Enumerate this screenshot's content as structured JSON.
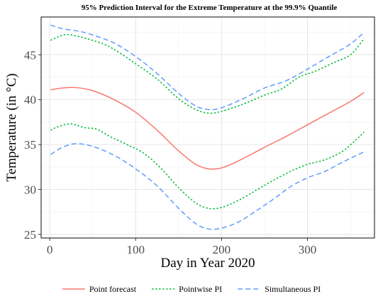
{
  "chart_data": {
    "type": "line",
    "title": "95% Prediction Interval for the Extreme Temperature at the 99.9% Quantile",
    "xlabel": "Day in Year 2020",
    "ylabel": "Temperature (in °C)",
    "xlim": [
      -10,
      378
    ],
    "ylim": [
      24.6,
      49.2
    ],
    "x_ticks": [
      0,
      100,
      200,
      300
    ],
    "y_ticks": [
      25,
      30,
      35,
      40,
      45
    ],
    "grid": true,
    "legend_position": "bottom",
    "series": [
      {
        "name": "Point forecast",
        "color": "#F8766D",
        "dash": "solid",
        "points": [
          [
            1,
            41.1
          ],
          [
            15,
            41.3
          ],
          [
            30,
            41.35
          ],
          [
            50,
            41.0
          ],
          [
            75,
            40.0
          ],
          [
            100,
            38.6
          ],
          [
            125,
            36.6
          ],
          [
            150,
            34.3
          ],
          [
            170,
            32.8
          ],
          [
            185,
            32.3
          ],
          [
            200,
            32.4
          ],
          [
            220,
            33.2
          ],
          [
            250,
            34.7
          ],
          [
            275,
            35.9
          ],
          [
            300,
            37.2
          ],
          [
            325,
            38.5
          ],
          [
            350,
            39.8
          ],
          [
            366,
            40.8
          ]
        ]
      },
      {
        "name": "Pointwise PI",
        "color": "#00BA38",
        "dash": "dotted",
        "upper": [
          [
            1,
            46.6
          ],
          [
            10,
            47.0
          ],
          [
            20,
            47.25
          ],
          [
            35,
            47.0
          ],
          [
            50,
            46.6
          ],
          [
            65,
            46.1
          ],
          [
            80,
            45.3
          ],
          [
            100,
            44.0
          ],
          [
            125,
            42.3
          ],
          [
            150,
            40.1
          ],
          [
            170,
            38.9
          ],
          [
            185,
            38.5
          ],
          [
            200,
            38.7
          ],
          [
            225,
            39.5
          ],
          [
            250,
            40.5
          ],
          [
            270,
            41.2
          ],
          [
            290,
            42.5
          ],
          [
            310,
            43.2
          ],
          [
            330,
            44.1
          ],
          [
            350,
            45.0
          ],
          [
            366,
            46.8
          ]
        ],
        "lower": [
          [
            1,
            36.6
          ],
          [
            10,
            37.0
          ],
          [
            25,
            37.3
          ],
          [
            40,
            36.9
          ],
          [
            55,
            36.7
          ],
          [
            70,
            35.9
          ],
          [
            90,
            35.0
          ],
          [
            110,
            34.0
          ],
          [
            130,
            32.3
          ],
          [
            150,
            30.2
          ],
          [
            170,
            28.5
          ],
          [
            185,
            27.9
          ],
          [
            200,
            28.0
          ],
          [
            220,
            28.8
          ],
          [
            240,
            29.9
          ],
          [
            260,
            31.0
          ],
          [
            280,
            32.0
          ],
          [
            300,
            32.8
          ],
          [
            320,
            33.3
          ],
          [
            340,
            34.2
          ],
          [
            355,
            35.4
          ],
          [
            366,
            36.4
          ]
        ]
      },
      {
        "name": "Simultaneous PI",
        "color": "#619CFF",
        "dash": "dashed",
        "upper": [
          [
            1,
            48.3
          ],
          [
            15,
            47.9
          ],
          [
            35,
            47.6
          ],
          [
            50,
            47.2
          ],
          [
            75,
            46.3
          ],
          [
            100,
            44.8
          ],
          [
            125,
            42.9
          ],
          [
            150,
            40.7
          ],
          [
            170,
            39.3
          ],
          [
            185,
            38.9
          ],
          [
            200,
            39.1
          ],
          [
            225,
            40.1
          ],
          [
            250,
            41.3
          ],
          [
            275,
            42.1
          ],
          [
            300,
            43.4
          ],
          [
            325,
            44.8
          ],
          [
            350,
            46.2
          ],
          [
            366,
            47.5
          ]
        ],
        "lower": [
          [
            1,
            33.9
          ],
          [
            15,
            34.7
          ],
          [
            30,
            35.1
          ],
          [
            50,
            34.8
          ],
          [
            75,
            33.8
          ],
          [
            100,
            32.3
          ],
          [
            125,
            30.4
          ],
          [
            150,
            27.9
          ],
          [
            170,
            26.2
          ],
          [
            185,
            25.6
          ],
          [
            200,
            25.7
          ],
          [
            220,
            26.4
          ],
          [
            240,
            27.6
          ],
          [
            260,
            28.9
          ],
          [
            280,
            30.3
          ],
          [
            300,
            31.3
          ],
          [
            320,
            32.0
          ],
          [
            340,
            33.0
          ],
          [
            366,
            34.2
          ]
        ]
      }
    ]
  }
}
